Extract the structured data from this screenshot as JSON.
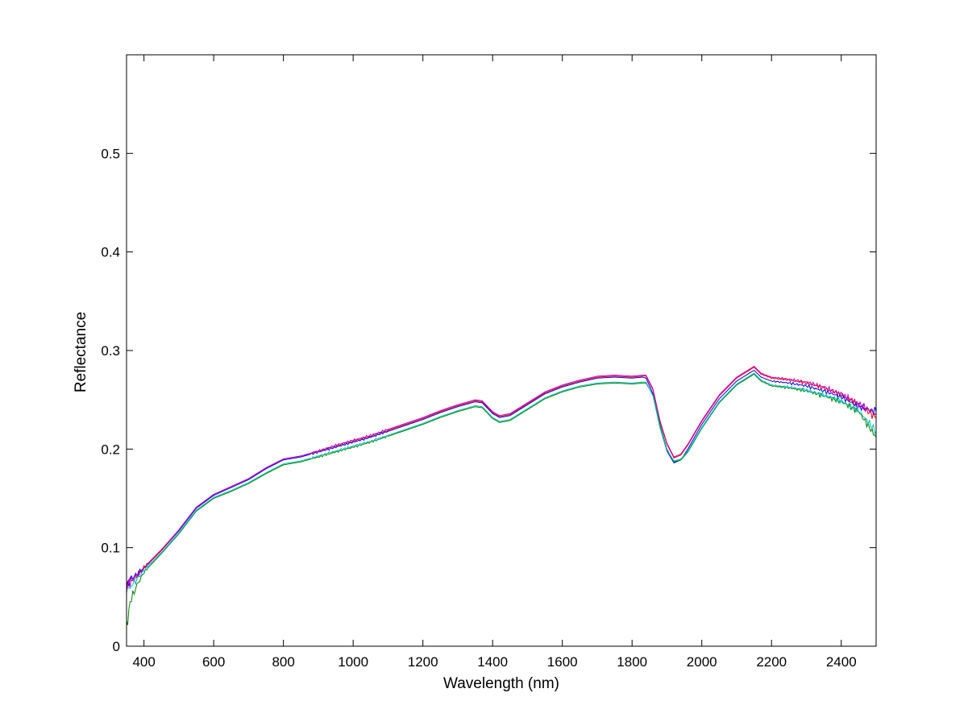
{
  "chart_data": {
    "type": "line",
    "title": "",
    "xlabel": "Wavelength (nm)",
    "ylabel": "Reflectance",
    "xlim": [
      350,
      2500
    ],
    "ylim": [
      0,
      0.6
    ],
    "xticks": [
      400,
      600,
      800,
      1000,
      1200,
      1400,
      1600,
      1800,
      2000,
      2200,
      2400
    ],
    "yticks": [
      0,
      0.1,
      0.2,
      0.3,
      0.4,
      0.5
    ],
    "ytick_labels": [
      "0",
      "0.1",
      "0.2",
      "0.3",
      "0.4",
      "0.5"
    ],
    "grid": false,
    "legend": "none",
    "series": [
      {
        "color": "#ff0000",
        "x": [
          350,
          360,
          380,
          400,
          450,
          500,
          550,
          600,
          650,
          700,
          750,
          800,
          850,
          900,
          950,
          1000,
          1050,
          1100,
          1150,
          1200,
          1250,
          1300,
          1350,
          1370,
          1400,
          1420,
          1450,
          1500,
          1550,
          1600,
          1650,
          1700,
          1750,
          1800,
          1830,
          1840,
          1860,
          1880,
          1900,
          1920,
          1940,
          1960,
          2000,
          2050,
          2100,
          2150,
          2170,
          2200,
          2250,
          2300,
          2350,
          2400,
          2450,
          2500
        ],
        "y": [
          0.06,
          0.066,
          0.072,
          0.08,
          0.098,
          0.118,
          0.141,
          0.154,
          0.162,
          0.17,
          0.181,
          0.19,
          0.193,
          0.198,
          0.203,
          0.208,
          0.213,
          0.219,
          0.225,
          0.231,
          0.238,
          0.244,
          0.249,
          0.248,
          0.237,
          0.233,
          0.235,
          0.246,
          0.257,
          0.264,
          0.269,
          0.273,
          0.274,
          0.273,
          0.274,
          0.274,
          0.26,
          0.228,
          0.205,
          0.191,
          0.194,
          0.204,
          0.228,
          0.254,
          0.272,
          0.283,
          0.276,
          0.272,
          0.27,
          0.267,
          0.262,
          0.255,
          0.245,
          0.232
        ]
      },
      {
        "color": "#0000ff",
        "x": [
          350,
          360,
          380,
          400,
          450,
          500,
          550,
          600,
          650,
          700,
          750,
          800,
          850,
          900,
          950,
          1000,
          1050,
          1100,
          1150,
          1200,
          1250,
          1300,
          1350,
          1370,
          1400,
          1420,
          1450,
          1500,
          1550,
          1600,
          1650,
          1700,
          1750,
          1800,
          1830,
          1840,
          1860,
          1880,
          1900,
          1920,
          1940,
          1960,
          2000,
          2050,
          2100,
          2150,
          2170,
          2200,
          2250,
          2300,
          2350,
          2400,
          2450,
          2500
        ],
        "y": [
          0.062,
          0.068,
          0.073,
          0.079,
          0.097,
          0.117,
          0.14,
          0.153,
          0.161,
          0.169,
          0.18,
          0.189,
          0.192,
          0.197,
          0.202,
          0.207,
          0.212,
          0.218,
          0.224,
          0.23,
          0.237,
          0.243,
          0.248,
          0.247,
          0.236,
          0.232,
          0.234,
          0.245,
          0.256,
          0.263,
          0.268,
          0.272,
          0.273,
          0.272,
          0.273,
          0.272,
          0.256,
          0.222,
          0.198,
          0.186,
          0.189,
          0.2,
          0.225,
          0.251,
          0.269,
          0.28,
          0.273,
          0.269,
          0.267,
          0.264,
          0.259,
          0.253,
          0.243,
          0.238
        ]
      },
      {
        "color": "#bf00bf",
        "x": [
          350,
          360,
          380,
          400,
          450,
          500,
          550,
          600,
          650,
          700,
          750,
          800,
          850,
          900,
          950,
          1000,
          1050,
          1100,
          1150,
          1200,
          1250,
          1300,
          1350,
          1370,
          1400,
          1420,
          1450,
          1500,
          1550,
          1600,
          1650,
          1700,
          1750,
          1800,
          1830,
          1840,
          1860,
          1880,
          1900,
          1920,
          1940,
          1960,
          2000,
          2050,
          2100,
          2150,
          2170,
          2200,
          2250,
          2300,
          2350,
          2400,
          2450,
          2500
        ],
        "y": [
          0.058,
          0.065,
          0.071,
          0.079,
          0.097,
          0.118,
          0.141,
          0.154,
          0.162,
          0.17,
          0.181,
          0.19,
          0.193,
          0.198,
          0.204,
          0.209,
          0.214,
          0.22,
          0.226,
          0.232,
          0.239,
          0.245,
          0.25,
          0.249,
          0.238,
          0.234,
          0.236,
          0.247,
          0.258,
          0.265,
          0.27,
          0.274,
          0.275,
          0.274,
          0.275,
          0.275,
          0.261,
          0.229,
          0.206,
          0.192,
          0.195,
          0.205,
          0.229,
          0.255,
          0.273,
          0.284,
          0.277,
          0.273,
          0.271,
          0.268,
          0.263,
          0.256,
          0.246,
          0.236
        ]
      },
      {
        "color": "#008000",
        "x": [
          350,
          360,
          380,
          400,
          450,
          500,
          550,
          600,
          650,
          700,
          750,
          800,
          850,
          900,
          950,
          1000,
          1050,
          1100,
          1150,
          1200,
          1250,
          1300,
          1350,
          1370,
          1400,
          1420,
          1450,
          1500,
          1550,
          1600,
          1650,
          1700,
          1750,
          1800,
          1830,
          1840,
          1860,
          1880,
          1900,
          1920,
          1940,
          1960,
          2000,
          2050,
          2100,
          2150,
          2170,
          2200,
          2250,
          2300,
          2350,
          2400,
          2450,
          2500
        ],
        "y": [
          0.02,
          0.045,
          0.062,
          0.075,
          0.094,
          0.114,
          0.137,
          0.15,
          0.157,
          0.165,
          0.175,
          0.184,
          0.187,
          0.192,
          0.197,
          0.202,
          0.207,
          0.213,
          0.219,
          0.225,
          0.232,
          0.238,
          0.243,
          0.242,
          0.231,
          0.227,
          0.229,
          0.24,
          0.251,
          0.258,
          0.263,
          0.266,
          0.267,
          0.266,
          0.267,
          0.267,
          0.255,
          0.225,
          0.2,
          0.187,
          0.189,
          0.197,
          0.221,
          0.247,
          0.265,
          0.276,
          0.269,
          0.264,
          0.262,
          0.259,
          0.254,
          0.248,
          0.238,
          0.212
        ]
      },
      {
        "color": "#00bfbf",
        "x": [
          350,
          360,
          380,
          400,
          450,
          500,
          550,
          600,
          650,
          700,
          750,
          800,
          850,
          900,
          950,
          1000,
          1050,
          1100,
          1150,
          1200,
          1250,
          1300,
          1350,
          1370,
          1400,
          1420,
          1450,
          1500,
          1550,
          1600,
          1650,
          1700,
          1750,
          1800,
          1830,
          1840,
          1860,
          1880,
          1900,
          1920,
          1940,
          1960,
          2000,
          2050,
          2100,
          2150,
          2170,
          2200,
          2250,
          2300,
          2350,
          2400,
          2450,
          2500
        ],
        "y": [
          0.055,
          0.06,
          0.068,
          0.077,
          0.095,
          0.115,
          0.138,
          0.151,
          0.158,
          0.166,
          0.176,
          0.185,
          0.188,
          0.193,
          0.198,
          0.203,
          0.208,
          0.214,
          0.22,
          0.226,
          0.233,
          0.239,
          0.244,
          0.243,
          0.232,
          0.228,
          0.23,
          0.241,
          0.252,
          0.259,
          0.264,
          0.267,
          0.268,
          0.267,
          0.268,
          0.268,
          0.254,
          0.222,
          0.199,
          0.188,
          0.19,
          0.198,
          0.222,
          0.248,
          0.266,
          0.277,
          0.27,
          0.265,
          0.263,
          0.26,
          0.255,
          0.249,
          0.239,
          0.218
        ]
      }
    ]
  }
}
